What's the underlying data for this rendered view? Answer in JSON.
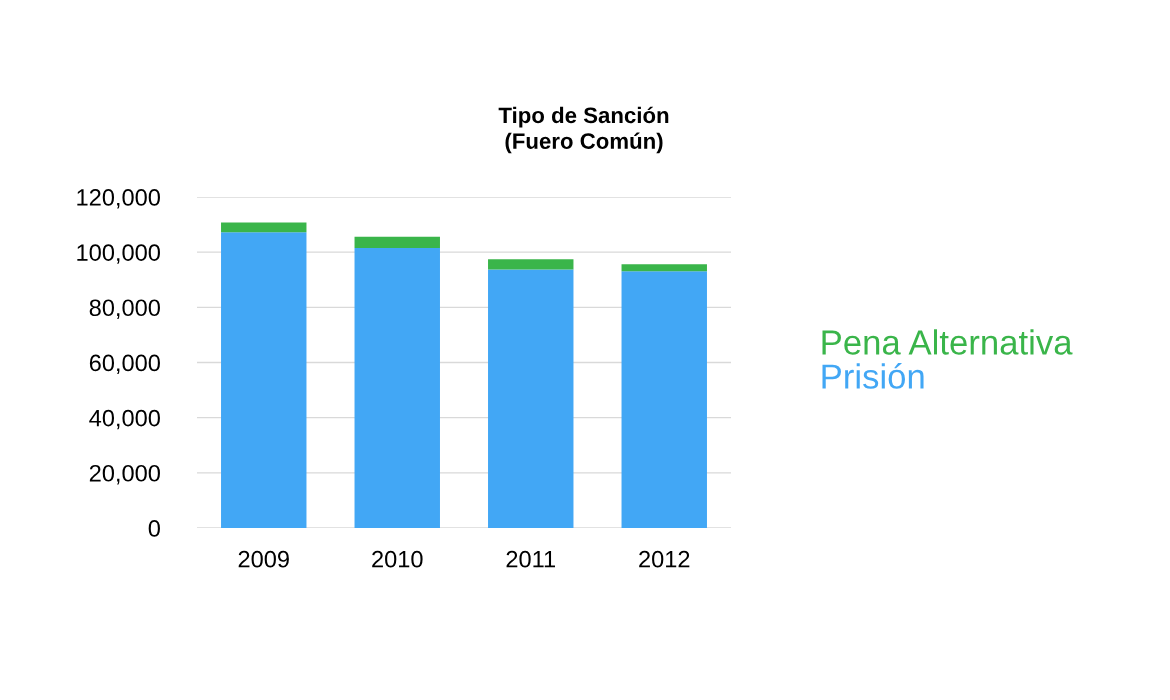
{
  "chart_data": {
    "type": "bar",
    "title": "Tipo de Sanción\n(Fuero Común)",
    "categories": [
      "2009",
      "2010",
      "2011",
      "2012"
    ],
    "stacked": true,
    "series": [
      {
        "name": "Prisión",
        "color": "#42a7f5",
        "values": [
          107200,
          101500,
          93700,
          93100
        ]
      },
      {
        "name": "Pena Alternativa",
        "color": "#3ab54a",
        "values": [
          3600,
          4100,
          3700,
          2500
        ]
      }
    ],
    "ylim": [
      0,
      120000
    ],
    "yticks": [
      {
        "value": 0,
        "label": "0"
      },
      {
        "value": 20000,
        "label": "20,000"
      },
      {
        "value": 40000,
        "label": "40,000"
      },
      {
        "value": 60000,
        "label": "60,000"
      },
      {
        "value": 80000,
        "label": "80,000"
      },
      {
        "value": 100000,
        "label": "100,000"
      },
      {
        "value": 120000,
        "label": "120,000"
      }
    ],
    "grid": "y",
    "legend": "right"
  }
}
